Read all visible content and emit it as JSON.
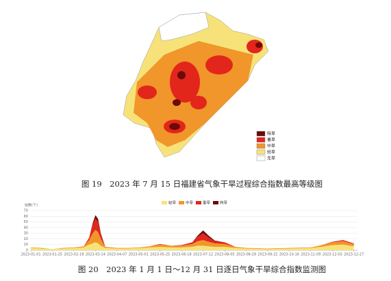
{
  "map": {
    "legend": [
      {
        "label": "特旱",
        "color": "#6b0a0a"
      },
      {
        "label": "重旱",
        "color": "#e3261b"
      },
      {
        "label": "中旱",
        "color": "#f0962a"
      },
      {
        "label": "轻旱",
        "color": "#f7e27a"
      },
      {
        "label": "无旱",
        "color": "#ffffff"
      }
    ]
  },
  "caption_19": "图 19　2023 年 7 月 15 日福建省气象干旱过程综合指数最高等级图",
  "chart_data": {
    "type": "area",
    "stacked": true,
    "y_label": "站数(个)",
    "x": [
      "2023-01-01",
      "2023-01-13",
      "2023-01-25",
      "2023-02-06",
      "2023-02-18",
      "2023-03-01",
      "2023-03-07",
      "2023-03-11",
      "2023-03-14",
      "2023-03-17",
      "2023-03-20",
      "2023-03-25",
      "2023-04-07",
      "2023-04-20",
      "2023-05-01",
      "2023-05-13",
      "2023-05-25",
      "2023-06-06",
      "2023-06-18",
      "2023-06-30",
      "2023-07-06",
      "2023-07-12",
      "2023-07-18",
      "2023-07-25",
      "2023-08-05",
      "2023-08-17",
      "2023-08-29",
      "2023-09-22",
      "2023-10-16",
      "2023-11-09",
      "2023-11-21",
      "2023-12-03",
      "2023-12-15",
      "2023-12-27"
    ],
    "xlim": [
      "2023-01-01",
      "2023-12-31"
    ],
    "xticks": [
      "2023-01-01",
      "2023-01-25",
      "2023-02-18",
      "2023-03-14",
      "2023-04-07",
      "2023-05-01",
      "2023-05-25",
      "2023-06-18",
      "2023-07-12",
      "2023-08-05",
      "2023-08-29",
      "2023-09-22",
      "2023-10-16",
      "2023-11-09",
      "2023-12-03",
      "2023-12-27"
    ],
    "ylim": [
      0,
      70
    ],
    "yticks": [
      0,
      10,
      20,
      30,
      40,
      50,
      60,
      70
    ],
    "grid": true,
    "series": [
      {
        "name": "轻旱",
        "color": "#f7e27a",
        "values": [
          4,
          3,
          2,
          3,
          4,
          5,
          10,
          12,
          14,
          12,
          8,
          4,
          3,
          3,
          4,
          5,
          6,
          5,
          5,
          6,
          8,
          8,
          7,
          6,
          6,
          4,
          3,
          2,
          3,
          4,
          6,
          9,
          10,
          7
        ]
      },
      {
        "name": "中旱",
        "color": "#f0962a",
        "values": [
          1,
          1,
          0,
          1,
          1,
          2,
          8,
          18,
          22,
          20,
          12,
          2,
          1,
          1,
          1,
          2,
          4,
          3,
          3,
          5,
          8,
          10,
          8,
          6,
          5,
          2,
          1,
          1,
          1,
          1,
          3,
          5,
          6,
          4
        ]
      },
      {
        "name": "重旱",
        "color": "#e3261b",
        "values": [
          0,
          0,
          0,
          0,
          0,
          0,
          4,
          15,
          20,
          18,
          8,
          0,
          0,
          0,
          0,
          0,
          1,
          0,
          1,
          3,
          8,
          12,
          8,
          4,
          3,
          0,
          0,
          0,
          0,
          0,
          0,
          1,
          2,
          1
        ]
      },
      {
        "name": "特旱",
        "color": "#6b0a0a",
        "values": [
          0,
          0,
          0,
          0,
          0,
          0,
          0,
          3,
          6,
          5,
          2,
          0,
          0,
          0,
          0,
          0,
          0,
          0,
          0,
          0,
          2,
          5,
          3,
          1,
          0,
          0,
          0,
          0,
          0,
          0,
          0,
          0,
          0,
          0
        ]
      }
    ]
  },
  "caption_20": "图 20　2023 年 1 月 1 日～12 月 31 日逐日气象干旱综合指数监测图"
}
